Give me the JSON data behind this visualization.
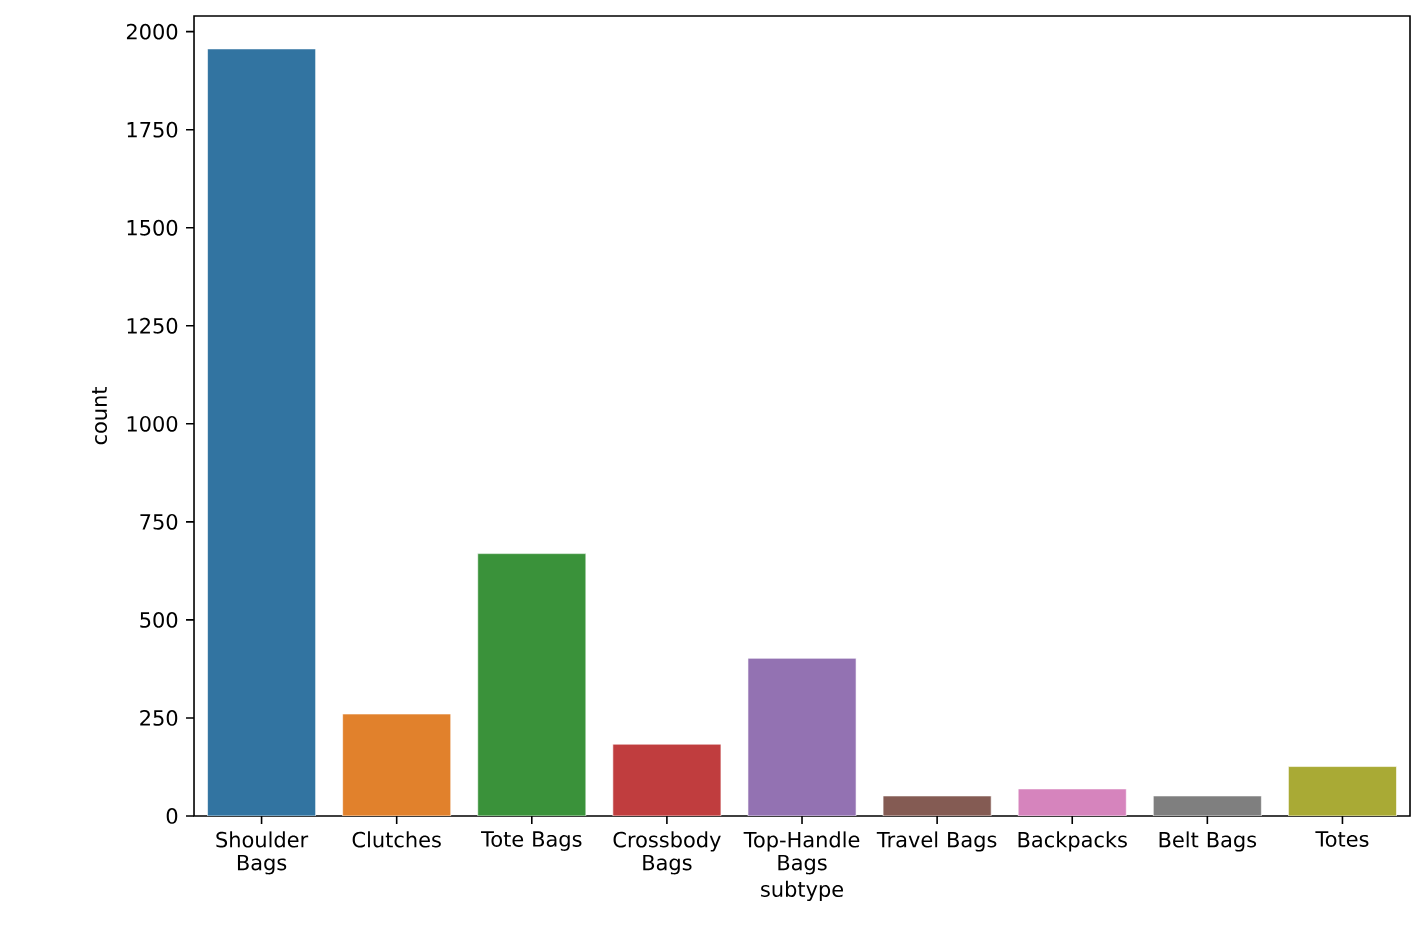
{
  "chart_data": {
    "type": "bar",
    "xlabel": "subtype",
    "ylabel": "count",
    "categories": [
      "Shoulder Bags",
      "Clutches",
      "Tote Bags",
      "Crossbody Bags",
      "Top-Handle Bags",
      "Travel Bags",
      "Backpacks",
      "Belt Bags",
      "Totes"
    ],
    "values": [
      1956,
      260,
      669,
      183,
      402,
      51,
      69,
      51,
      126
    ],
    "colors": [
      "#3274a1",
      "#e1812c",
      "#3a923a",
      "#c03d3e",
      "#9372b2",
      "#845b53",
      "#d684bd",
      "#7f7f7f",
      "#a9aa35"
    ],
    "ylim": [
      0,
      2040
    ],
    "yticks": [
      0,
      250,
      500,
      750,
      1000,
      1250,
      1500,
      1750,
      2000
    ],
    "grid": false
  }
}
